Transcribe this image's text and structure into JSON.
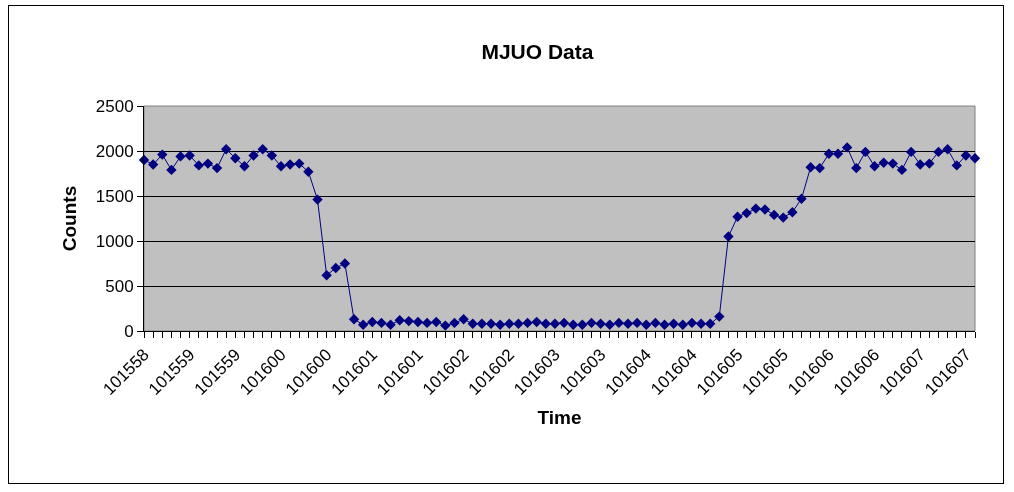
{
  "chart_data": {
    "type": "line",
    "title": "MJUO Data",
    "xlabel": "Time",
    "ylabel": "Counts",
    "categories": [
      "101558",
      null,
      null,
      null,
      null,
      "101559",
      null,
      null,
      null,
      null,
      "101559",
      null,
      null,
      null,
      null,
      "101600",
      null,
      null,
      null,
      null,
      "101600",
      null,
      null,
      null,
      null,
      "101601",
      null,
      null,
      null,
      null,
      "101601",
      null,
      null,
      null,
      null,
      "101602",
      null,
      null,
      null,
      null,
      "101602",
      null,
      null,
      null,
      null,
      "101603",
      null,
      null,
      null,
      null,
      "101603",
      null,
      null,
      null,
      null,
      "101604",
      null,
      null,
      null,
      null,
      "101604",
      null,
      null,
      null,
      null,
      "101605",
      null,
      null,
      null,
      null,
      "101605",
      null,
      null,
      null,
      null,
      "101606",
      null,
      null,
      null,
      null,
      "101606",
      null,
      null,
      null,
      null,
      "101607",
      null,
      null,
      null,
      null,
      "101607",
      null
    ],
    "series": [
      {
        "color": "#000080",
        "values": [
          1900,
          1850,
          1960,
          1790,
          1940,
          1950,
          1840,
          1860,
          1810,
          2020,
          1920,
          1830,
          1950,
          2020,
          1950,
          1830,
          1850,
          1860,
          1770,
          1460,
          620,
          700,
          750,
          130,
          70,
          100,
          90,
          70,
          120,
          110,
          100,
          90,
          100,
          60,
          90,
          130,
          80,
          80,
          80,
          70,
          80,
          80,
          90,
          100,
          80,
          80,
          90,
          70,
          70,
          90,
          80,
          70,
          90,
          80,
          90,
          70,
          90,
          70,
          80,
          70,
          90,
          80,
          80,
          160,
          1050,
          1270,
          1310,
          1360,
          1350,
          1290,
          1260,
          1320,
          1470,
          1820,
          1810,
          1970,
          1970,
          2040,
          1810,
          1990,
          1830,
          1870,
          1860,
          1790,
          1990,
          1850,
          1860,
          1990,
          2020,
          1840,
          1950,
          1920
        ]
      }
    ],
    "ylim": [
      0,
      2500
    ],
    "yticks": [
      0,
      500,
      1000,
      1500,
      2000,
      2500
    ],
    "grid": "y",
    "marker": "diamond",
    "line_style": "solid"
  }
}
